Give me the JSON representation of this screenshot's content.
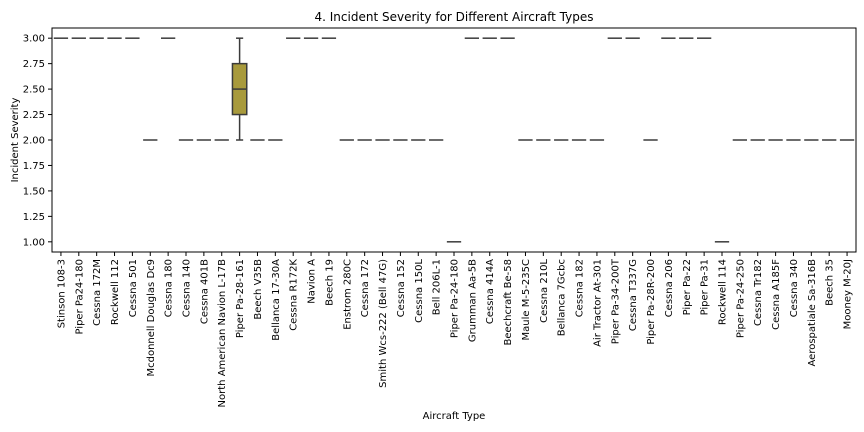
{
  "chart_data": {
    "type": "box",
    "title": "4. Incident Severity for Different Aircraft Types",
    "xlabel": "Aircraft Type",
    "ylabel": "Incident Severity",
    "ylim": [
      0.9,
      3.1
    ],
    "yticks": [
      "1.00",
      "1.25",
      "1.50",
      "1.75",
      "2.00",
      "2.25",
      "2.50",
      "2.75",
      "3.00"
    ],
    "grid": false,
    "legend": "none",
    "colors": {
      "box_fill": "#a89a3c",
      "line": "#3b3b3b"
    },
    "categories": [
      "Stinson 108-3",
      "Piper Pa24-180",
      "Cessna 172M",
      "Rockwell 112",
      "Cessna 501",
      "Mcdonnell Douglas Dc9",
      "Cessna 180",
      "Cessna 140",
      "Cessna 401B",
      "North American Navion L-17B",
      "Piper Pa-28-161",
      "Beech V35B",
      "Bellanca 17-30A",
      "Cessna R172K",
      "Navion A",
      "Beech 19",
      "Enstrom 280C",
      "Cessna 172",
      "Smith Wcs-222 (Bell 47G)",
      "Cessna 152",
      "Cessna 150L",
      "Bell 206L-1",
      "Piper Pa-24-180",
      "Grumman Aa-5B",
      "Cessna 414A",
      "Beechcraft Be-58",
      "Maule M-5-235C",
      "Cessna 210L",
      "Bellanca 7Gcbc",
      "Cessna 182",
      "Air Tractor At-301",
      "Piper Pa-34-200T",
      "Cessna T337G",
      "Piper Pa-28R-200",
      "Cessna 206",
      "Piper Pa-22",
      "Piper Pa-31",
      "Rockwell 114",
      "Piper Pa-24-250",
      "Cessna Tr182",
      "Cessna A185F",
      "Cessna 340",
      "Aerospatiale Sa-316B",
      "Beech 35",
      "Mooney M-20J"
    ],
    "values": [
      3,
      3,
      3,
      3,
      3,
      2,
      3,
      2,
      2,
      2,
      null,
      2,
      2,
      3,
      3,
      3,
      2,
      2,
      2,
      2,
      2,
      2,
      1,
      3,
      3,
      3,
      2,
      2,
      2,
      2,
      2,
      3,
      3,
      2,
      3,
      3,
      3,
      1,
      2,
      2,
      2,
      2,
      2,
      2,
      2
    ],
    "box": {
      "category": "Piper Pa-28-161",
      "min": 2.0,
      "q1": 2.25,
      "median": 2.5,
      "q3": 2.75,
      "max": 3.0
    }
  }
}
